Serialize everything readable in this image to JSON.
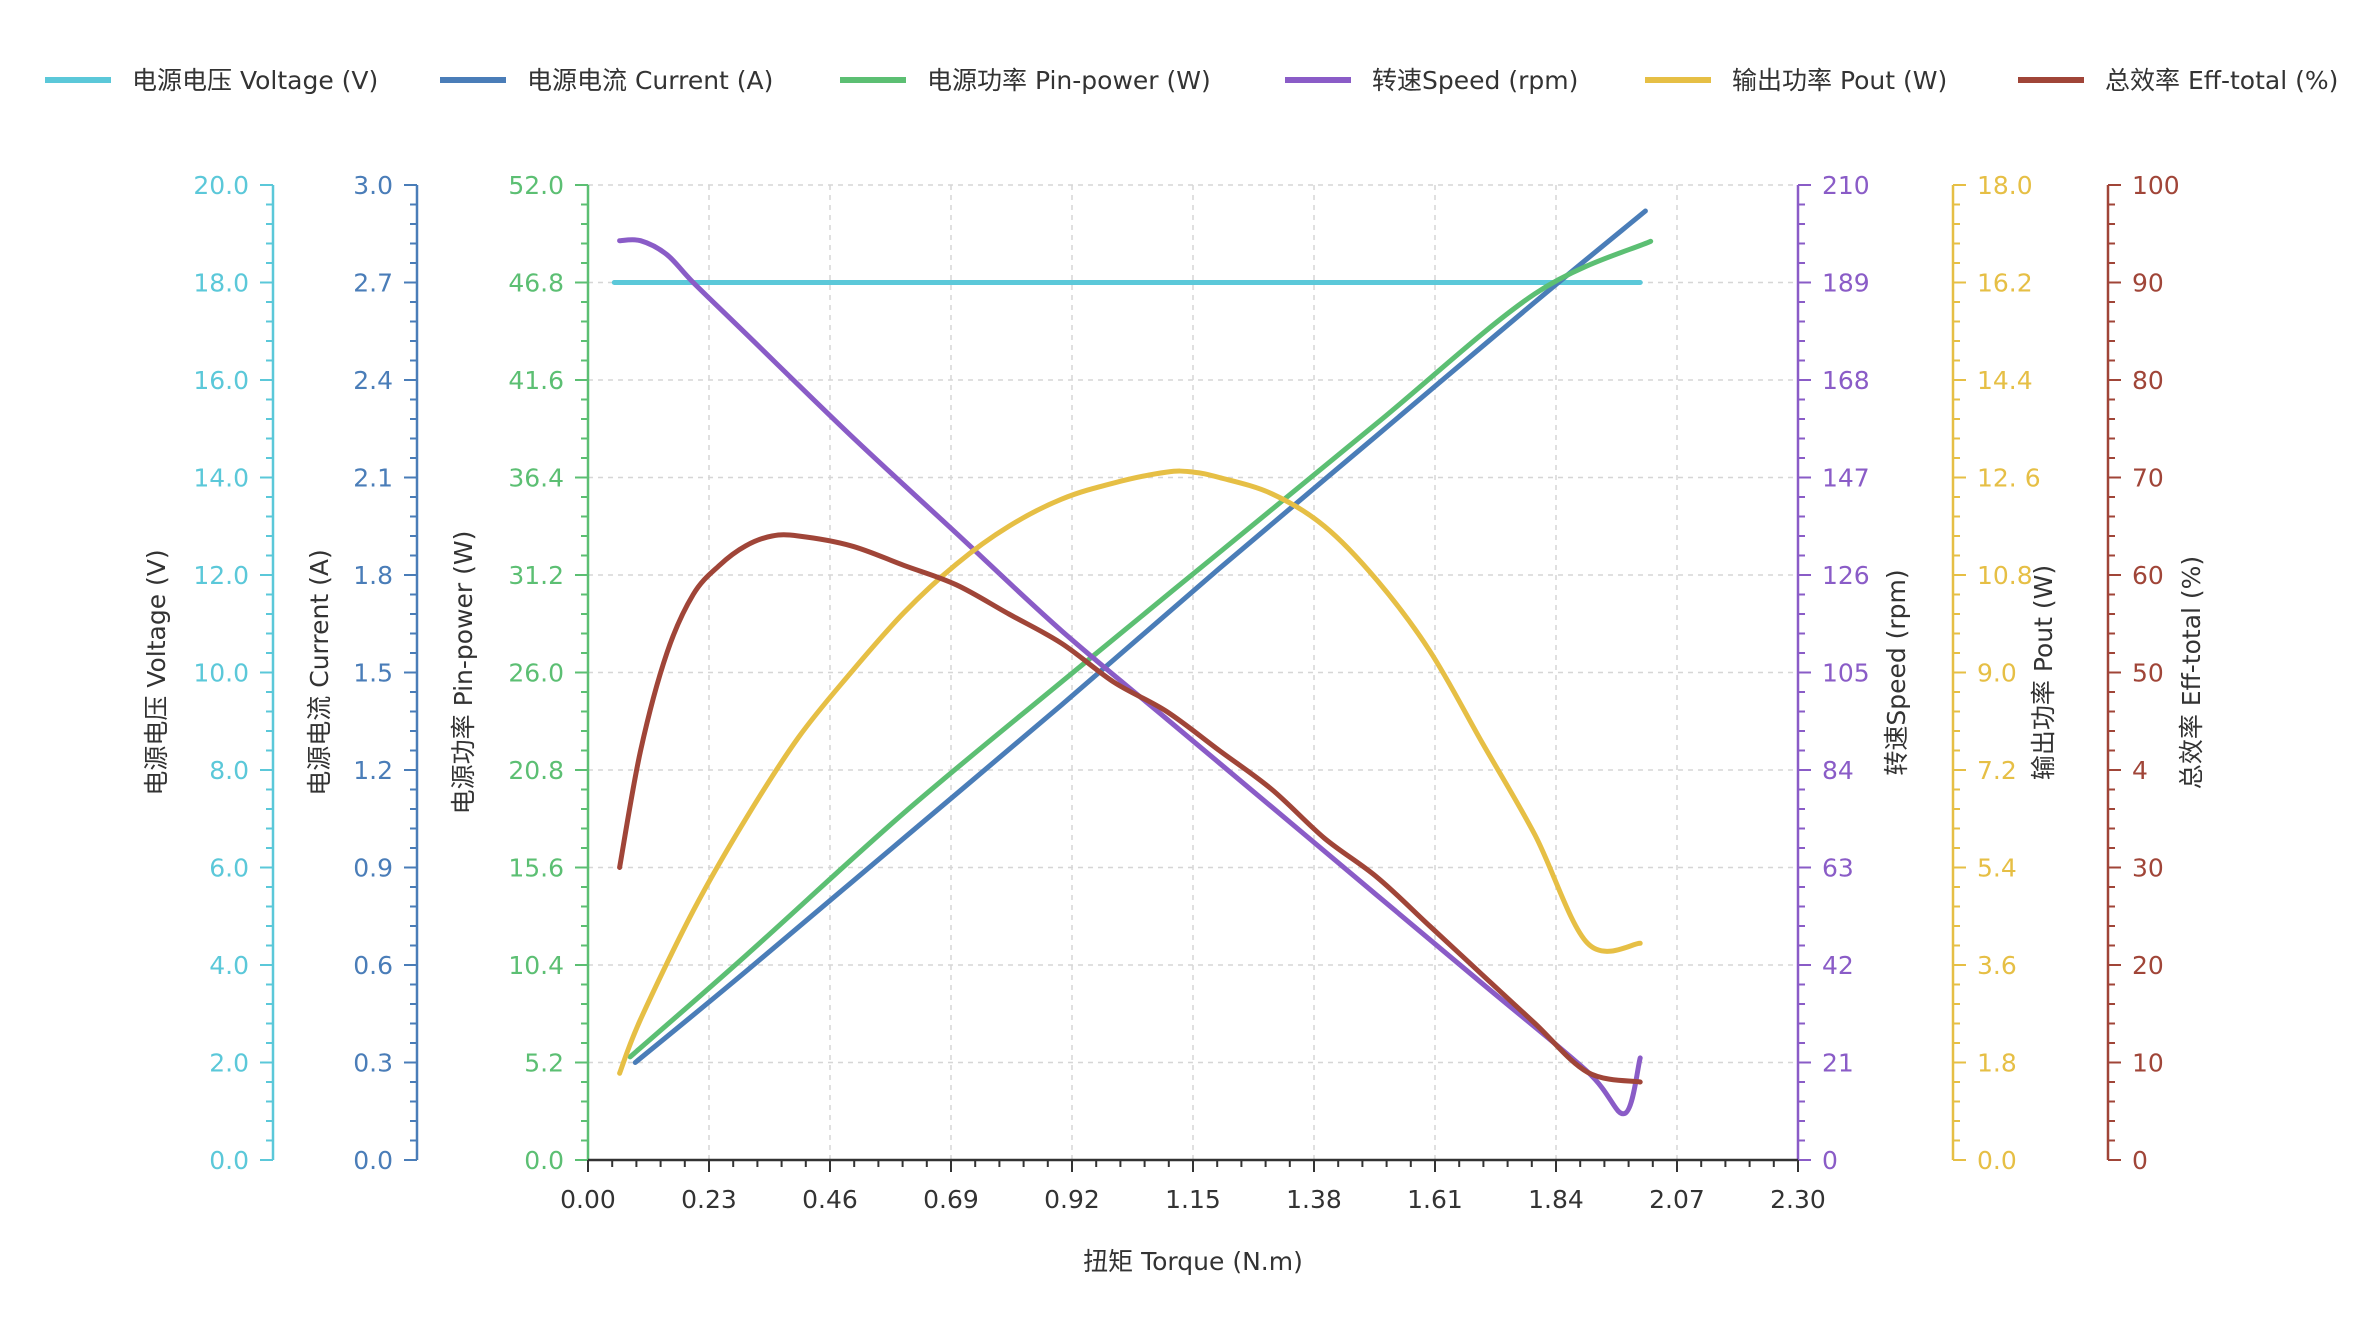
{
  "chart_data": {
    "type": "line",
    "title": "",
    "x_axis": {
      "label": "扭矩 Torque (N.m)",
      "range": [
        0,
        2.3
      ],
      "ticks": [
        "0.00",
        "0.23",
        "0.46",
        "0.69",
        "0.92",
        "1.15",
        "1.38",
        "1.61",
        "1.84",
        "2.07",
        "2.30"
      ]
    },
    "legend_position": "top",
    "grid": true,
    "y_axes": [
      {
        "id": "voltage",
        "label": "电源电压 Voltage (V)",
        "color": "#5bc8d9",
        "side": "left",
        "range": [
          0,
          20
        ],
        "ticks": [
          "0.0",
          "2.0",
          "4.0",
          "6.0",
          "8.0",
          "10.0",
          "12.0",
          "14.0",
          "16.0",
          "18.0",
          "20.0"
        ]
      },
      {
        "id": "current",
        "label": "电源电流 Current (A)",
        "color": "#4a7db8",
        "side": "left",
        "range": [
          0,
          3
        ],
        "ticks": [
          "0.0",
          "0.3",
          "0.6",
          "0.9",
          "1.2",
          "1.5",
          "1.8",
          "2.1",
          "2.4",
          "2.7",
          "3.0"
        ]
      },
      {
        "id": "pin",
        "label": "电源功率 Pin-power (W)",
        "color": "#5cbf73",
        "side": "left",
        "range": [
          0,
          52
        ],
        "ticks": [
          "0.0",
          "5.2",
          "10.4",
          "15.6",
          "20.8",
          "26.0",
          "31.2",
          "36.4",
          "41.6",
          "46.8",
          "52.0"
        ]
      },
      {
        "id": "speed",
        "label": "转速Speed (rpm)",
        "color": "#8a5cc7",
        "side": "right",
        "range": [
          0,
          210
        ],
        "ticks": [
          "0",
          "21",
          "42",
          "63",
          "84",
          "105",
          "126",
          "147",
          "168",
          "189",
          "210"
        ]
      },
      {
        "id": "pout",
        "label": "输出功率 Pout (W)",
        "color": "#e6bf45",
        "side": "right",
        "range": [
          0,
          18
        ],
        "ticks": [
          "0.0",
          "1.8",
          "3.6",
          "5.4",
          "7.2",
          "9.0",
          "10.8",
          "12. 6",
          "14.4",
          "16.2",
          "18.0"
        ]
      },
      {
        "id": "eff",
        "label": "总效率 Eff-total (%)",
        "color": "#a04538",
        "side": "right",
        "range": [
          0,
          100
        ],
        "ticks": [
          "0",
          "10",
          "20",
          "30",
          "4",
          "50",
          "60",
          "70",
          "80",
          "90",
          "100"
        ]
      }
    ],
    "series": [
      {
        "name": "电源电压 Voltage (V)",
        "axis": "voltage",
        "color": "#5bc8d9",
        "x": [
          0.05,
          0.3,
          0.6,
          0.9,
          1.2,
          1.5,
          1.8,
          2.0
        ],
        "y": [
          18.0,
          18.0,
          18.0,
          18.0,
          18.0,
          18.0,
          18.0,
          18.0
        ]
      },
      {
        "name": "电源电流 Current (A)",
        "axis": "current",
        "color": "#4a7db8",
        "x": [
          0.09,
          0.3,
          0.6,
          0.9,
          1.2,
          1.5,
          1.8,
          2.01
        ],
        "y": [
          0.3,
          0.58,
          0.99,
          1.4,
          1.82,
          2.23,
          2.64,
          2.92
        ]
      },
      {
        "name": "电源功率 Pin-power (W)",
        "axis": "pin",
        "color": "#5cbf73",
        "x": [
          0.08,
          0.3,
          0.6,
          0.9,
          1.2,
          1.5,
          1.8,
          2.02
        ],
        "y": [
          5.5,
          10.9,
          18.5,
          25.5,
          32.4,
          39.3,
          46.2,
          49.0
        ]
      },
      {
        "name": "转速Speed (rpm)",
        "axis": "speed",
        "color": "#8a5cc7",
        "x": [
          0.06,
          0.1,
          0.15,
          0.2,
          0.3,
          0.5,
          0.7,
          0.9,
          1.1,
          1.3,
          1.5,
          1.7,
          1.9,
          1.97,
          2.0
        ],
        "y": [
          198,
          198,
          195,
          189,
          178,
          156,
          135,
          114,
          95,
          76,
          57,
          38,
          19,
          10,
          22
        ]
      },
      {
        "name": "输出功率 Pout (W)",
        "axis": "pout",
        "color": "#e6bf45",
        "x": [
          0.06,
          0.1,
          0.2,
          0.3,
          0.4,
          0.5,
          0.6,
          0.7,
          0.8,
          0.9,
          1.0,
          1.1,
          1.15,
          1.2,
          1.3,
          1.4,
          1.5,
          1.6,
          1.7,
          1.8,
          1.9,
          2.0
        ],
        "y": [
          1.6,
          2.6,
          4.6,
          6.3,
          7.8,
          9.0,
          10.1,
          11.0,
          11.7,
          12.2,
          12.5,
          12.7,
          12.7,
          12.6,
          12.3,
          11.7,
          10.7,
          9.4,
          7.7,
          6.0,
          4.0,
          4.0
        ]
      },
      {
        "name": "总效率 Eff-total (%)",
        "axis": "eff",
        "color": "#a04538",
        "x": [
          0.06,
          0.1,
          0.15,
          0.2,
          0.25,
          0.3,
          0.35,
          0.4,
          0.5,
          0.6,
          0.7,
          0.8,
          0.9,
          1.0,
          1.1,
          1.2,
          1.3,
          1.4,
          1.5,
          1.6,
          1.7,
          1.8,
          1.9,
          2.0
        ],
        "y": [
          30,
          42,
          52,
          58,
          61,
          63,
          64,
          64,
          63,
          61,
          59,
          56,
          53,
          49,
          46,
          42,
          38,
          33,
          29,
          24,
          19,
          14,
          9,
          8
        ]
      }
    ]
  }
}
